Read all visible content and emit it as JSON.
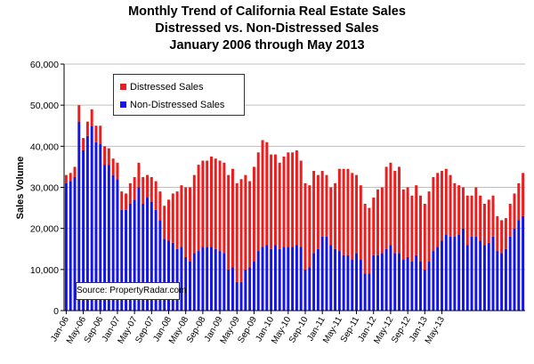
{
  "chart_data": {
    "type": "bar",
    "stacked": true,
    "title": [
      "Monthly Trend of California Real Estate Sales",
      "Distressed vs. Non-Distressed Sales",
      "January 2006 through May 2013"
    ],
    "ylabel": "Sales Volume",
    "ylim": [
      0,
      60000
    ],
    "yticks": [
      "0",
      "10,000",
      "20,000",
      "30,000",
      "40,000",
      "50,000",
      "60,000"
    ],
    "xtick_labels": [
      "Jan-06",
      "May-06",
      "Sep-06",
      "Jan-07",
      "May-07",
      "Sep-07",
      "Jan-08",
      "May-08",
      "Sep-08",
      "Jan-09",
      "May-09",
      "Sep-09",
      "Jan-10",
      "May-10",
      "Sep-10",
      "Jan-11",
      "May-11",
      "Sep-11",
      "Jan-12",
      "May-12",
      "Sep-12",
      "Jan-13",
      "May-13"
    ],
    "legend_position": "top-left",
    "source": "Source: PropertyRadar.com",
    "colors": {
      "distressed": "#ee1c1c",
      "non_distressed": "#1515e8"
    },
    "series": [
      {
        "name": "Distressed Sales",
        "values": [
          2000,
          2000,
          2500,
          4000,
          3000,
          3500,
          4000,
          4000,
          4500,
          4500,
          4000,
          4000,
          4000,
          4500,
          4000,
          5000,
          5500,
          6000,
          6500,
          5500,
          6000,
          7000,
          7000,
          8000,
          10000,
          12000,
          14000,
          15000,
          17000,
          18000,
          19000,
          21000,
          21000,
          21000,
          22000,
          22000,
          22000,
          22000,
          23000,
          24000,
          24000,
          25000,
          23000,
          21000,
          23000,
          24000,
          26000,
          25000,
          23000,
          22000,
          21000,
          22000,
          23000,
          23000,
          23000,
          21000,
          21000,
          20000,
          20000,
          18000,
          16000,
          15000,
          14000,
          16000,
          20000,
          21000,
          21000,
          21000,
          19000,
          18000,
          17000,
          16000,
          14000,
          16000,
          16000,
          20000,
          20000,
          20000,
          21000,
          17000,
          17000,
          16000,
          17000,
          16000,
          16000,
          17000,
          18000,
          18000,
          17000,
          16000,
          15000,
          13000,
          12000,
          10000,
          12000,
          10000,
          12000,
          11000,
          10000,
          10500,
          10000,
          8500,
          8000,
          7500,
          8000,
          8500,
          9000,
          10500
        ],
        "stack_offset_series": "Non-Distressed Sales"
      },
      {
        "name": "Non-Distressed Sales",
        "values": [
          31000,
          31500,
          32500,
          46000,
          39000,
          42500,
          45000,
          41000,
          40500,
          35500,
          35500,
          33000,
          32000,
          24500,
          24500,
          26000,
          27000,
          30000,
          26000,
          27500,
          26500,
          24500,
          22000,
          17500,
          17000,
          16500,
          15000,
          15500,
          13000,
          12000,
          14000,
          14500,
          15500,
          15500,
          15500,
          15000,
          14500,
          14000,
          10000,
          10500,
          7000,
          7000,
          10000,
          10500,
          12000,
          14500,
          15500,
          16000,
          15000,
          16000,
          15000,
          15500,
          15500,
          15500,
          16000,
          15500,
          10000,
          10500,
          14000,
          15000,
          18000,
          18000,
          16000,
          15000,
          14500,
          13500,
          13500,
          12500,
          14000,
          12500,
          9000,
          9000,
          13500,
          13500,
          14000,
          15000,
          16000,
          14000,
          14000,
          12500,
          13000,
          12000,
          13500,
          12000,
          10000,
          12000,
          14500,
          15500,
          17000,
          18500,
          18000,
          18000,
          18500,
          20000,
          16000,
          18000,
          18000,
          17000,
          16000,
          16500,
          18000,
          14500,
          14000,
          15000,
          18000,
          20000,
          22000,
          23000
        ]
      }
    ]
  }
}
